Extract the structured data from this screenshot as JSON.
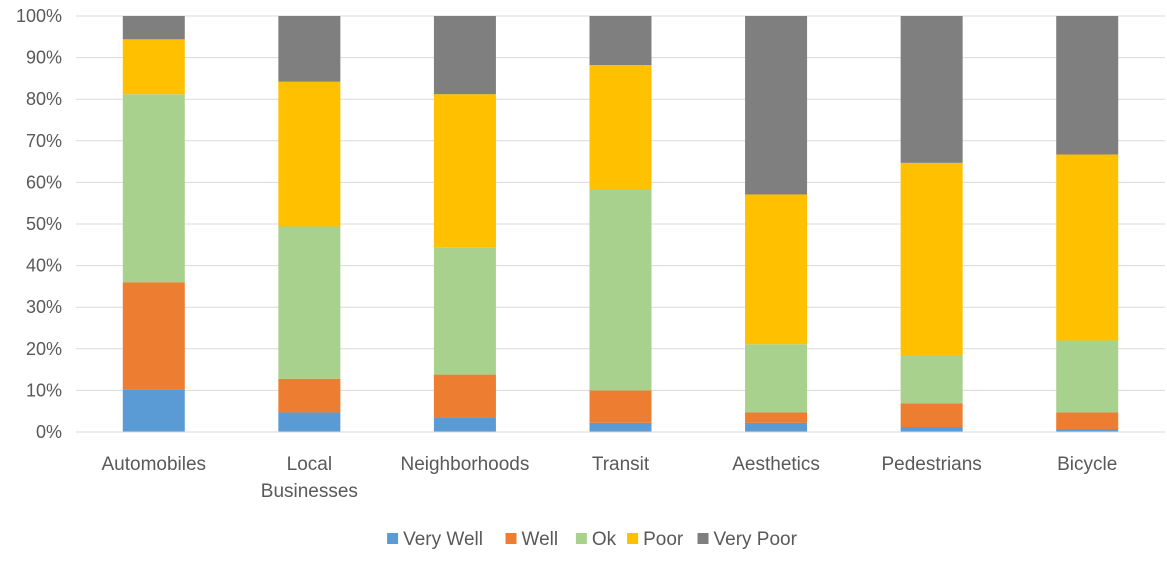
{
  "chart_data": {
    "type": "bar",
    "stacked": true,
    "percent_stacked": true,
    "categories": [
      [
        "Automobiles"
      ],
      [
        "Local",
        "Businesses"
      ],
      [
        "Neighborhoods"
      ],
      [
        "Transit"
      ],
      [
        "Aesthetics"
      ],
      [
        "Pedestrians"
      ],
      [
        "Bicycle"
      ]
    ],
    "series": [
      {
        "name": "Very Well",
        "color": "#5B9BD5",
        "values": [
          10.3,
          4.7,
          3.5,
          2.2,
          2.2,
          1.2,
          0.6
        ]
      },
      {
        "name": "Well",
        "color": "#ED7D31",
        "values": [
          25.7,
          8.1,
          10.3,
          7.8,
          2.5,
          5.7,
          4.1
        ]
      },
      {
        "name": "Ok",
        "color": "#A9D18E",
        "values": [
          45.2,
          36.6,
          30.6,
          48.3,
          16.4,
          11.6,
          17.3
        ]
      },
      {
        "name": "Poor",
        "color": "#FFC000",
        "values": [
          13.2,
          34.8,
          36.8,
          29.9,
          36.0,
          46.2,
          44.7
        ]
      },
      {
        "name": "Very Poor",
        "color": "#7F7F7F",
        "values": [
          5.6,
          15.8,
          18.8,
          11.8,
          42.9,
          35.3,
          33.3
        ]
      }
    ],
    "y_ticks": [
      "0%",
      "10%",
      "20%",
      "30%",
      "40%",
      "50%",
      "60%",
      "70%",
      "80%",
      "90%",
      "100%"
    ],
    "ylim": [
      0,
      100
    ],
    "grid": true,
    "grid_color": "#D9D9D9",
    "legend_position": "bottom"
  }
}
